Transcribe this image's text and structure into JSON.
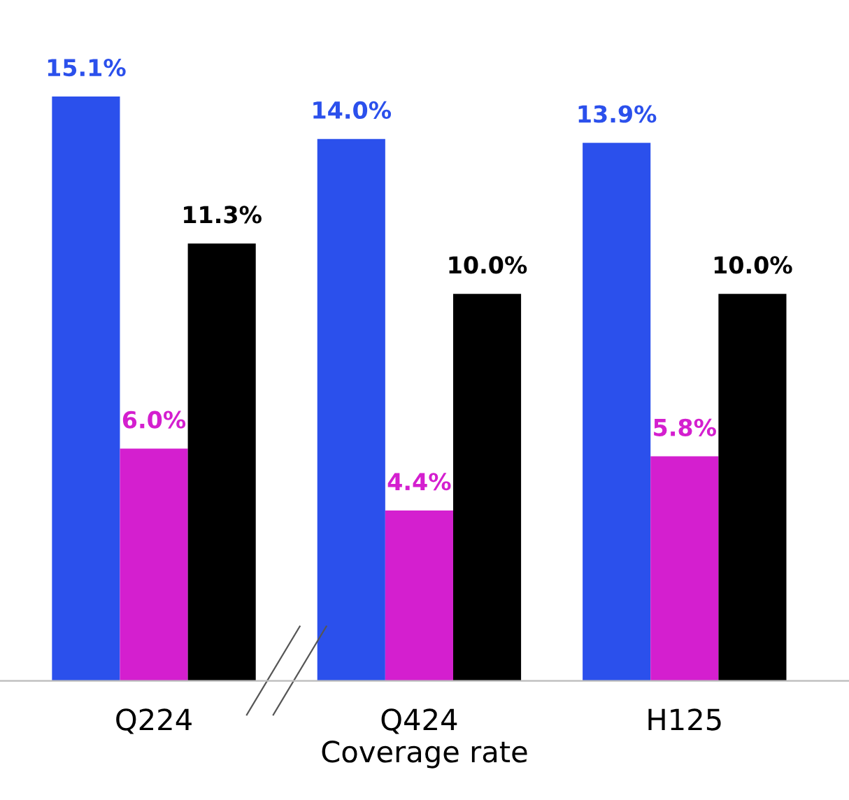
{
  "chart_data": {
    "type": "bar",
    "xlabel": "Coverage rate",
    "categories": [
      "Q224",
      "Q424",
      "H125"
    ],
    "series": [
      {
        "color": "#2b50ec",
        "values": [
          15.1,
          14.0,
          13.9
        ],
        "value_labels": [
          "15.1%",
          "14.0%",
          "13.9%"
        ]
      },
      {
        "color": "#d41fcf",
        "values": [
          6.0,
          4.4,
          5.8
        ],
        "value_labels": [
          "6.0%",
          "4.4%",
          "5.8%"
        ]
      },
      {
        "color": "#000000",
        "values": [
          11.3,
          10.0,
          10.0
        ],
        "value_labels": [
          "11.3%",
          "10.0%",
          "10.0%"
        ]
      }
    ]
  }
}
